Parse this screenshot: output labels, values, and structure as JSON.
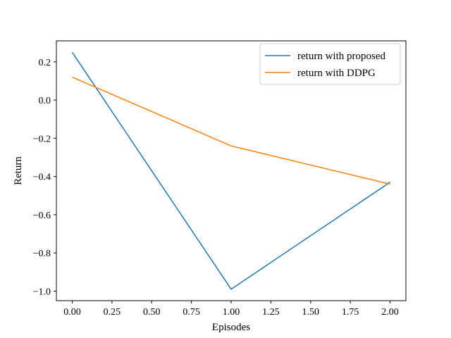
{
  "chart_data": {
    "type": "line",
    "title": "",
    "xlabel": "Episodes",
    "ylabel": "Return",
    "xlim": [
      -0.1,
      2.1
    ],
    "ylim": [
      -1.05,
      0.31
    ],
    "x_ticks": [
      0.0,
      0.25,
      0.5,
      0.75,
      1.0,
      1.25,
      1.5,
      1.75,
      2.0
    ],
    "x_tick_labels": [
      "0.00",
      "0.25",
      "0.50",
      "0.75",
      "1.00",
      "1.25",
      "1.50",
      "1.75",
      "2.00"
    ],
    "y_ticks": [
      0.2,
      0.0,
      -0.2,
      -0.4,
      -0.6,
      -0.8,
      -1.0
    ],
    "y_tick_labels": [
      "0.2",
      "0.0",
      "−0.2",
      "−0.4",
      "−0.6",
      "−0.8",
      "−1.0"
    ],
    "grid": false,
    "legend_position": "top-right",
    "series": [
      {
        "name": "return with proposed",
        "color": "#1f77b4",
        "x": [
          0,
          1,
          2
        ],
        "y": [
          0.25,
          -0.99,
          -0.43
        ]
      },
      {
        "name": "return with DDPG",
        "color": "#ff7f0e",
        "x": [
          0,
          1,
          2
        ],
        "y": [
          0.12,
          -0.24,
          -0.44
        ]
      }
    ]
  }
}
